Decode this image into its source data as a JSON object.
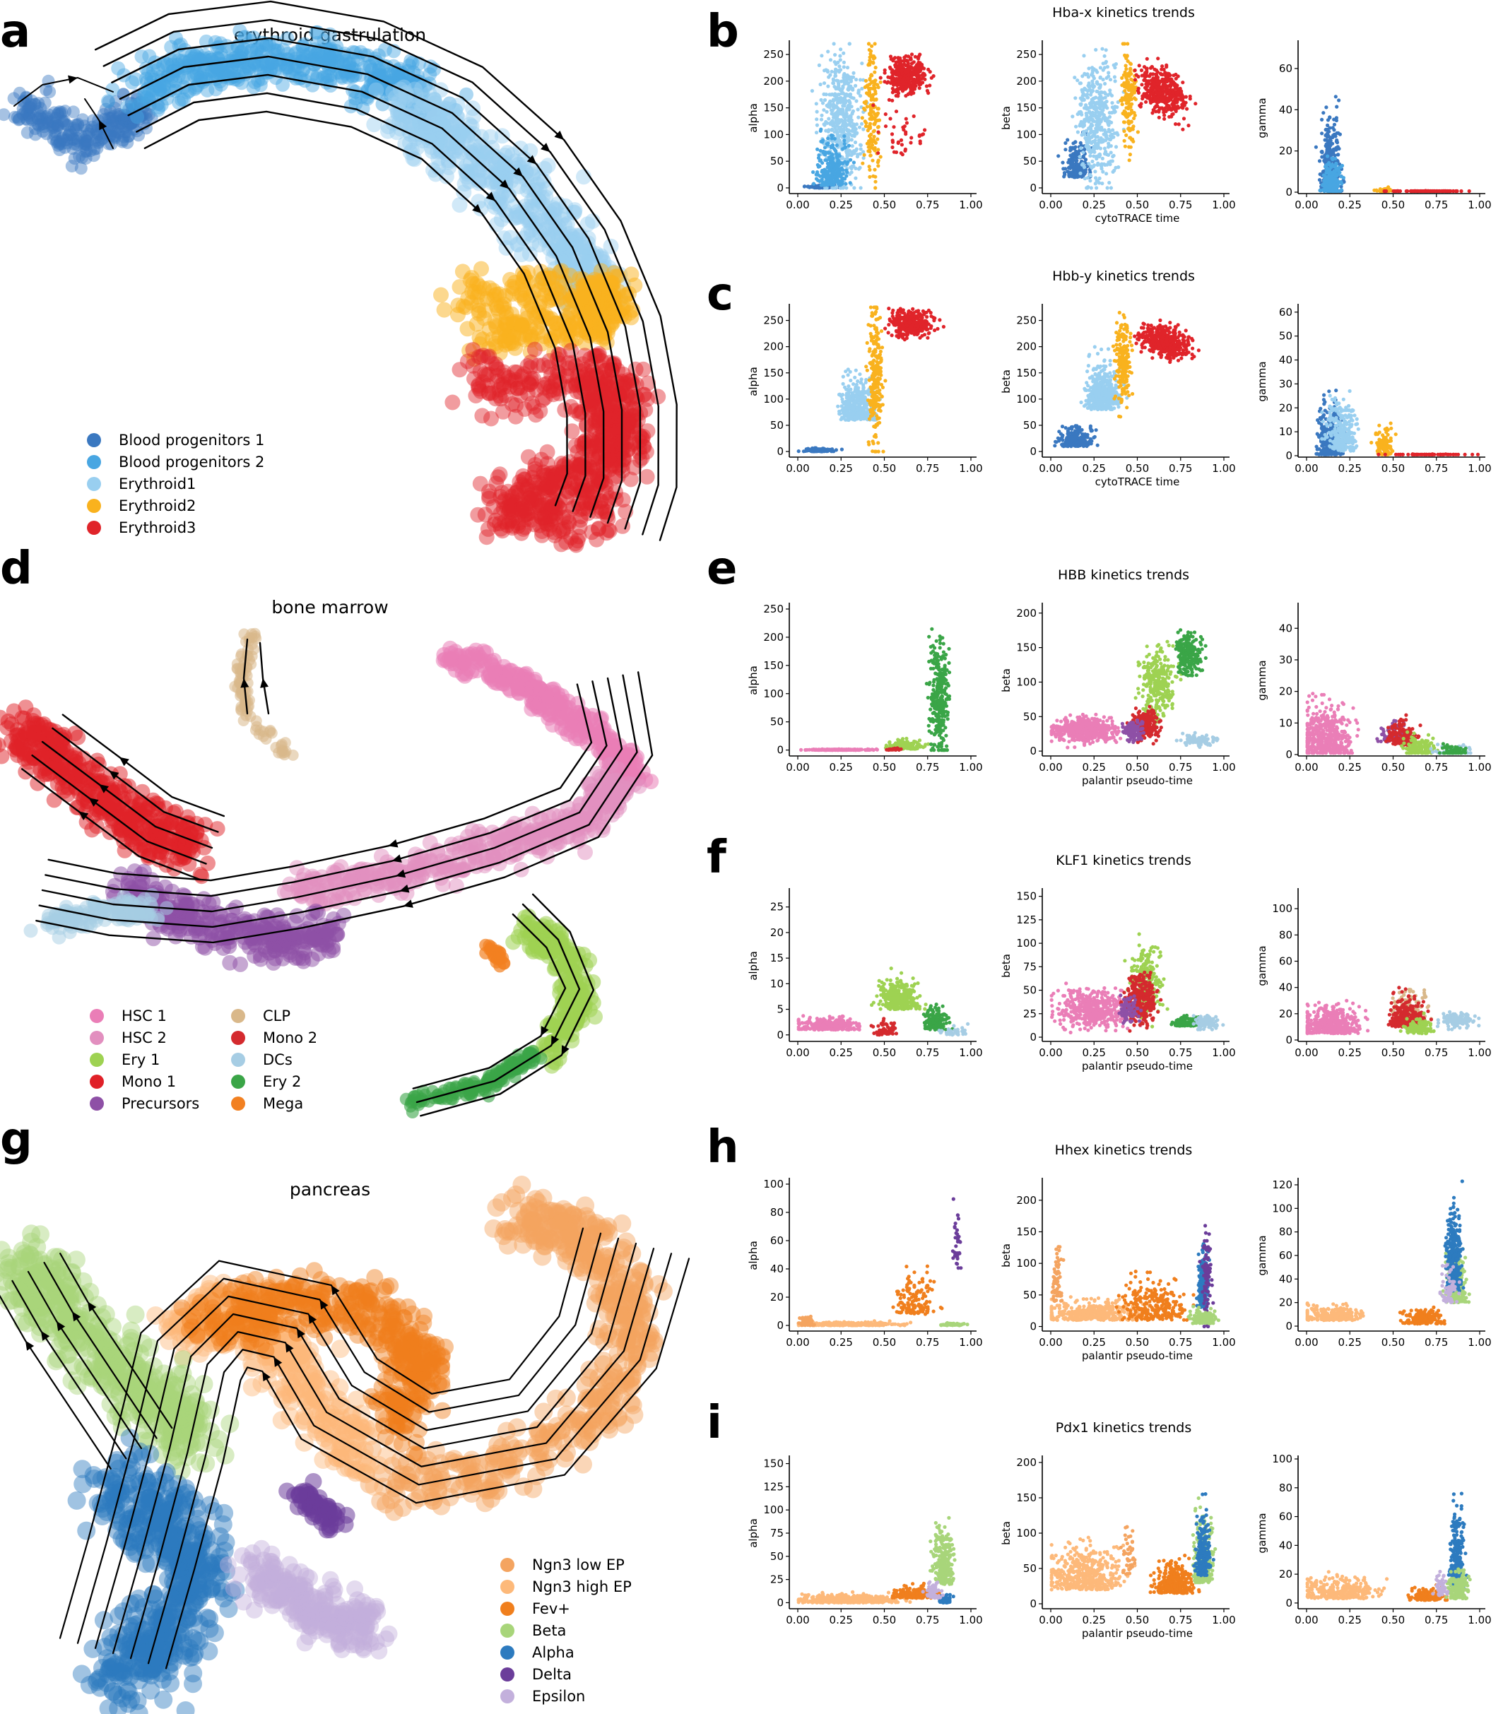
{
  "panel_labels": [
    "a",
    "b",
    "c",
    "d",
    "e",
    "f",
    "g",
    "h",
    "i"
  ],
  "chart_data": [
    {
      "id": "a",
      "type": "scatter",
      "title": "erythroid gastrulation",
      "legend": "bottom-left",
      "legend_items": [
        "Blood progenitors 1",
        "Blood progenitors 2",
        "Erythroid1",
        "Erythroid2",
        "Erythroid3"
      ],
      "colors": [
        "#3a78c0",
        "#48a6e2",
        "#99cff0",
        "#f9b21e",
        "#e0242a"
      ]
    },
    {
      "id": "b",
      "type": "scatter",
      "title": "Hba-x kinetics trends",
      "xlabel": "cytoTRACE time",
      "panels": [
        {
          "ylabel": "alpha",
          "xlim": [
            0,
            1
          ],
          "ylim": [
            -8,
            270
          ],
          "yticks": [
            0,
            50,
            100,
            150,
            200,
            250
          ]
        },
        {
          "ylabel": "beta",
          "xlim": [
            0,
            1
          ],
          "ylim": [
            -8,
            270
          ],
          "yticks": [
            0,
            50,
            100,
            150,
            200,
            250
          ]
        },
        {
          "ylabel": "gamma",
          "xlim": [
            0,
            1
          ],
          "ylim": [
            0,
            72
          ],
          "yticks": [
            0,
            20,
            40,
            60
          ]
        }
      ],
      "xticks": [
        "0.00",
        "0.25",
        "0.50",
        "0.75",
        "1.00"
      ]
    },
    {
      "id": "c",
      "type": "scatter",
      "title": "Hbb-y kinetics trends",
      "xlabel": "cytoTRACE time",
      "panels": [
        {
          "ylabel": "alpha",
          "xlim": [
            0,
            1
          ],
          "ylim": [
            -8,
            275
          ],
          "yticks": [
            0,
            50,
            100,
            150,
            200,
            250
          ]
        },
        {
          "ylabel": "beta",
          "xlim": [
            0,
            1
          ],
          "ylim": [
            -8,
            275
          ],
          "yticks": [
            0,
            50,
            100,
            150,
            200,
            250
          ]
        },
        {
          "ylabel": "gamma",
          "xlim": [
            0,
            1
          ],
          "ylim": [
            0,
            62
          ],
          "yticks": [
            0,
            10,
            20,
            30,
            40,
            50,
            60
          ]
        }
      ],
      "xticks": [
        "0.00",
        "0.25",
        "0.50",
        "0.75",
        "1.00"
      ]
    },
    {
      "id": "d",
      "type": "scatter",
      "title": "bone marrow",
      "legend": "bottom-left",
      "legend_items": [
        "HSC 1",
        "CLP",
        "HSC 2",
        "Mono 2",
        "Ery 1",
        "DCs",
        "Mono 1",
        "Ery 2",
        "Precursors",
        "Mega"
      ],
      "colors": [
        "#ea7eb7",
        "#d9b88a",
        "#e28fbf",
        "#d42a2e",
        "#9ed252",
        "#a6cde4",
        "#e02128",
        "#3aa547",
        "#8e50a6",
        "#f28021"
      ]
    },
    {
      "id": "e",
      "type": "scatter",
      "title": "HBB kinetics trends",
      "xlabel": "palantir pseudo-time",
      "panels": [
        {
          "ylabel": "alpha",
          "xlim": [
            0,
            1
          ],
          "ylim": [
            -8,
            255
          ],
          "yticks": [
            0,
            50,
            100,
            150,
            200,
            250
          ]
        },
        {
          "ylabel": "beta",
          "xlim": [
            0,
            1
          ],
          "ylim": [
            -5,
            210
          ],
          "yticks": [
            0,
            50,
            100,
            150,
            200
          ]
        },
        {
          "ylabel": "gamma",
          "xlim": [
            0,
            1
          ],
          "ylim": [
            0,
            47
          ],
          "yticks": [
            0,
            10,
            20,
            30,
            40
          ]
        }
      ],
      "xticks": [
        "0.00",
        "0.25",
        "0.50",
        "0.75",
        "1.00"
      ]
    },
    {
      "id": "f",
      "type": "scatter",
      "title": "KLF1 kinetics trends",
      "xlabel": "palantir pseudo-time",
      "panels": [
        {
          "ylabel": "alpha",
          "xlim": [
            0,
            1
          ],
          "ylim": [
            -1,
            28
          ],
          "yticks": [
            0,
            5,
            10,
            15,
            20,
            25
          ]
        },
        {
          "ylabel": "beta",
          "xlim": [
            0,
            1
          ],
          "ylim": [
            -3,
            155
          ],
          "yticks": [
            0,
            25,
            50,
            75,
            100,
            125,
            150
          ]
        },
        {
          "ylabel": "gamma",
          "xlim": [
            0,
            1
          ],
          "ylim": [
            0,
            113
          ],
          "yticks": [
            0,
            20,
            40,
            60,
            80,
            100
          ]
        }
      ],
      "xticks": [
        "0.00",
        "0.25",
        "0.50",
        "0.75",
        "1.00"
      ]
    },
    {
      "id": "g",
      "type": "scatter",
      "title": "pancreas",
      "legend": "bottom-right",
      "legend_items": [
        "Ngn3 low EP",
        "Ngn3 high EP",
        "Fev+",
        "Beta",
        "Alpha",
        "Delta",
        "Epsilon"
      ],
      "colors": [
        "#f4a460",
        "#fdb97a",
        "#f07f1d",
        "#a8d57a",
        "#2d7bbf",
        "#6b3d9a",
        "#c3b0dc"
      ]
    },
    {
      "id": "h",
      "type": "scatter",
      "title": "Hhex kinetics trends",
      "xlabel": "palantir pseudo-time",
      "panels": [
        {
          "ylabel": "alpha",
          "xlim": [
            0,
            1
          ],
          "ylim": [
            -3,
            102
          ],
          "yticks": [
            0,
            20,
            40,
            60,
            80,
            100
          ]
        },
        {
          "ylabel": "beta",
          "xlim": [
            0,
            1
          ],
          "ylim": [
            -5,
            230
          ],
          "yticks": [
            0,
            50,
            100,
            150,
            200
          ]
        },
        {
          "ylabel": "gamma",
          "xlim": [
            0,
            1
          ],
          "ylim": [
            -3,
            123
          ],
          "yticks": [
            0,
            20,
            40,
            60,
            80,
            100,
            120
          ]
        }
      ],
      "xticks": [
        "0.00",
        "0.25",
        "0.50",
        "0.75",
        "1.00"
      ]
    },
    {
      "id": "i",
      "type": "scatter",
      "title": "Pdx1 kinetics trends",
      "xlabel": "palantir pseudo-time",
      "panels": [
        {
          "ylabel": "alpha",
          "xlim": [
            0,
            1
          ],
          "ylim": [
            -5,
            155
          ],
          "yticks": [
            0,
            25,
            50,
            75,
            100,
            125,
            150
          ]
        },
        {
          "ylabel": "beta",
          "xlim": [
            0,
            1
          ],
          "ylim": [
            -5,
            205
          ],
          "yticks": [
            0,
            50,
            100,
            150,
            200
          ]
        },
        {
          "ylabel": "gamma",
          "xlim": [
            0,
            1
          ],
          "ylim": [
            -3,
            100
          ],
          "yticks": [
            0,
            20,
            40,
            60,
            80,
            100
          ]
        }
      ],
      "xticks": [
        "0.00",
        "0.25",
        "0.50",
        "0.75",
        "1.00"
      ]
    }
  ]
}
